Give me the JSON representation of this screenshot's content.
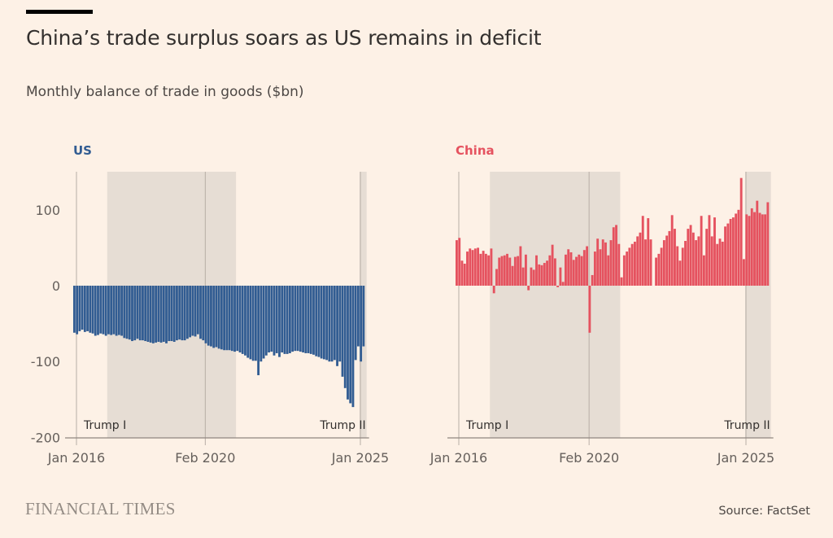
{
  "header": {
    "title": "China’s trade surplus soars as US remains in deficit",
    "subtitle": "Monthly balance of trade in goods ($bn)"
  },
  "footer": {
    "brand": "FINANCIAL TIMES",
    "source": "Source: FactSet"
  },
  "colors": {
    "background": "#fdf1e6",
    "us": "#315c92",
    "china": "#e5525f",
    "shading": "#e6ddd4"
  },
  "chart_data": [
    {
      "type": "bar",
      "title": "US",
      "xlabel": "",
      "ylabel": "",
      "ylim": [
        -200,
        150
      ],
      "yticks": [
        100,
        0,
        -100,
        -200
      ],
      "xticks": [
        "Jan 2016",
        "Feb 2020",
        "Jan 2025"
      ],
      "start": "Jan 2016",
      "annotations": [
        {
          "label": "Trump I",
          "from": "Jan 2017",
          "to": "Jan 2021"
        },
        {
          "label": "Trump II",
          "from": "Jan 2025",
          "to": "Mar 2025"
        }
      ],
      "series": [
        {
          "name": "US",
          "values": [
            -62,
            -64,
            -60,
            -58,
            -61,
            -60,
            -62,
            -63,
            -66,
            -65,
            -63,
            -64,
            -66,
            -64,
            -65,
            -64,
            -66,
            -65,
            -66,
            -69,
            -70,
            -71,
            -73,
            -72,
            -70,
            -72,
            -72,
            -73,
            -74,
            -75,
            -76,
            -75,
            -74,
            -75,
            -74,
            -76,
            -73,
            -73,
            -74,
            -72,
            -71,
            -72,
            -72,
            -70,
            -68,
            -66,
            -67,
            -64,
            -70,
            -72,
            -76,
            -79,
            -80,
            -82,
            -81,
            -83,
            -84,
            -85,
            -85,
            -85,
            -86,
            -87,
            -86,
            -88,
            -90,
            -92,
            -95,
            -97,
            -99,
            -99,
            -118,
            -100,
            -96,
            -92,
            -88,
            -87,
            -92,
            -89,
            -94,
            -88,
            -90,
            -90,
            -89,
            -87,
            -86,
            -86,
            -87,
            -88,
            -89,
            -89,
            -90,
            -91,
            -93,
            -94,
            -96,
            -97,
            -98,
            -100,
            -100,
            -98,
            -106,
            -100,
            -120,
            -135,
            -150,
            -155,
            -160,
            -98,
            -80,
            -100,
            -80
          ]
        }
      ]
    },
    {
      "type": "bar",
      "title": "China",
      "xlabel": "",
      "ylabel": "",
      "ylim": [
        -200,
        150
      ],
      "yticks": [
        100,
        0,
        -100,
        -200
      ],
      "xticks": [
        "Jan 2016",
        "Feb 2020",
        "Jan 2025"
      ],
      "start": "Jan 2016",
      "annotations": [
        {
          "label": "Trump I",
          "from": "Jan 2017",
          "to": "Jan 2021"
        },
        {
          "label": "Trump II",
          "from": "Jan 2025",
          "to": "Mar 2025"
        }
      ],
      "series": [
        {
          "name": "China",
          "values": [
            60,
            63,
            33,
            29,
            45,
            49,
            47,
            49,
            50,
            42,
            46,
            42,
            40,
            49,
            -10,
            22,
            37,
            39,
            40,
            42,
            37,
            26,
            38,
            39,
            52,
            24,
            41,
            -6,
            24,
            21,
            40,
            28,
            27,
            30,
            33,
            40,
            54,
            36,
            -2,
            24,
            5,
            41,
            48,
            44,
            34,
            38,
            41,
            39,
            47,
            52,
            -62,
            14,
            45,
            62,
            48,
            61,
            57,
            40,
            60,
            77,
            80,
            55,
            11,
            40,
            45,
            50,
            55,
            58,
            65,
            70,
            92,
            61,
            89,
            61,
            0,
            37,
            42,
            50,
            60,
            66,
            72,
            93,
            75,
            52,
            33,
            50,
            59,
            75,
            80,
            70,
            60,
            65,
            92,
            40,
            75,
            93,
            65,
            90,
            55,
            62,
            58,
            78,
            82,
            88,
            90,
            95,
            100,
            142,
            35,
            94,
            92,
            102,
            97,
            112,
            96,
            94,
            94,
            110
          ]
        }
      ]
    }
  ]
}
